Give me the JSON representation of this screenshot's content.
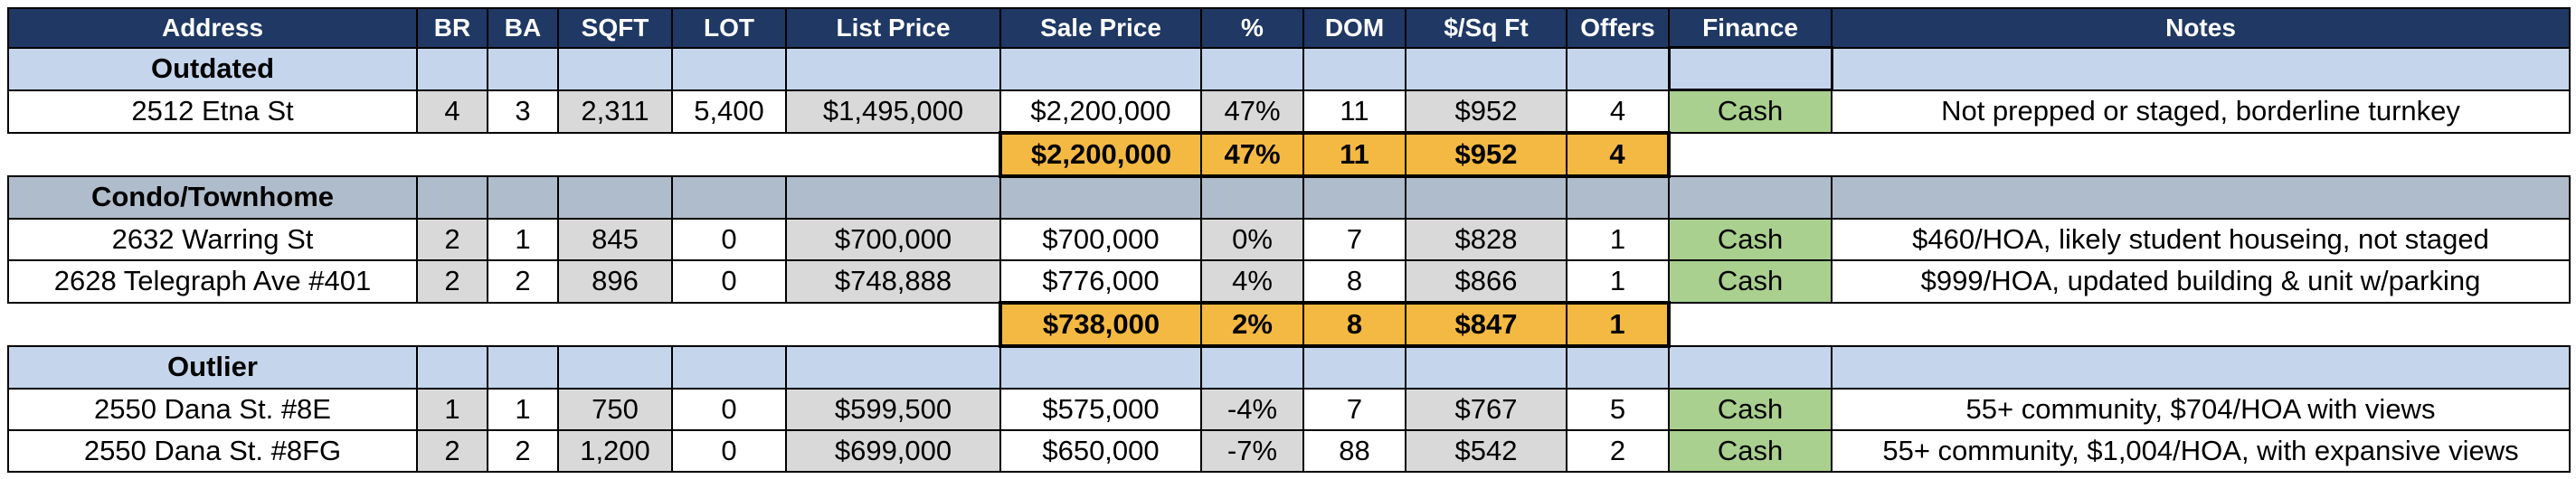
{
  "headers": [
    "Address",
    "BR",
    "BA",
    "SQFT",
    "LOT",
    "List Price",
    "Sale Price",
    "%",
    "DOM",
    "$/Sq Ft",
    "Offers",
    "Finance",
    "Notes"
  ],
  "groups": [
    {
      "label": "Outdated",
      "rows": [
        {
          "address": "2512 Etna St",
          "br": "4",
          "ba": "3",
          "sqft": "2,311",
          "lot": "5,400",
          "list": "$1,495,000",
          "sale": "$2,200,000",
          "pct": "47%",
          "dom": "11",
          "ppsf": "$952",
          "offers": "4",
          "finance": "Cash",
          "notes": "Not prepped or staged, borderline turnkey"
        }
      ],
      "summary": {
        "sale": "$2,200,000",
        "pct": "47%",
        "dom": "11",
        "ppsf": "$952",
        "offers": "4"
      }
    },
    {
      "label": "Condo/Townhome",
      "rows": [
        {
          "address": "2632 Warring St",
          "br": "2",
          "ba": "1",
          "sqft": "845",
          "lot": "0",
          "list": "$700,000",
          "sale": "$700,000",
          "pct": "0%",
          "dom": "7",
          "ppsf": "$828",
          "offers": "1",
          "finance": "Cash",
          "notes": "$460/HOA, likely student houseing, not staged"
        },
        {
          "address": "2628 Telegraph Ave #401",
          "br": "2",
          "ba": "2",
          "sqft": "896",
          "lot": "0",
          "list": "$748,888",
          "sale": "$776,000",
          "pct": "4%",
          "dom": "8",
          "ppsf": "$866",
          "offers": "1",
          "finance": "Cash",
          "notes": "$999/HOA, updated building & unit w/parking"
        }
      ],
      "summary": {
        "sale": "$738,000",
        "pct": "2%",
        "dom": "8",
        "ppsf": "$847",
        "offers": "1"
      }
    },
    {
      "label": "Outlier",
      "rows": [
        {
          "address": "2550 Dana St. #8E",
          "br": "1",
          "ba": "1",
          "sqft": "750",
          "lot": "0",
          "list": "$599,500",
          "sale": "$575,000",
          "pct": "-4%",
          "dom": "7",
          "ppsf": "$767",
          "offers": "5",
          "finance": "Cash",
          "notes": "55+ community, $704/HOA with views"
        },
        {
          "address": "2550 Dana St. #8FG",
          "br": "2",
          "ba": "2",
          "sqft": "1,200",
          "lot": "0",
          "list": "$699,000",
          "sale": "$650,000",
          "pct": "-7%",
          "dom": "88",
          "ppsf": "$542",
          "offers": "2",
          "finance": "Cash",
          "notes": "55+ community, $1,004/HOA, with expansive views"
        }
      ]
    }
  ],
  "colors": {
    "header_bg": "#1F3864",
    "section_bg": "#C5D6EC",
    "section_bg_alt": "#AFBCCB",
    "cell_grey": "#D9D9D9",
    "cash_green": "#A9D08E",
    "summary_gold": "#F4B942"
  }
}
